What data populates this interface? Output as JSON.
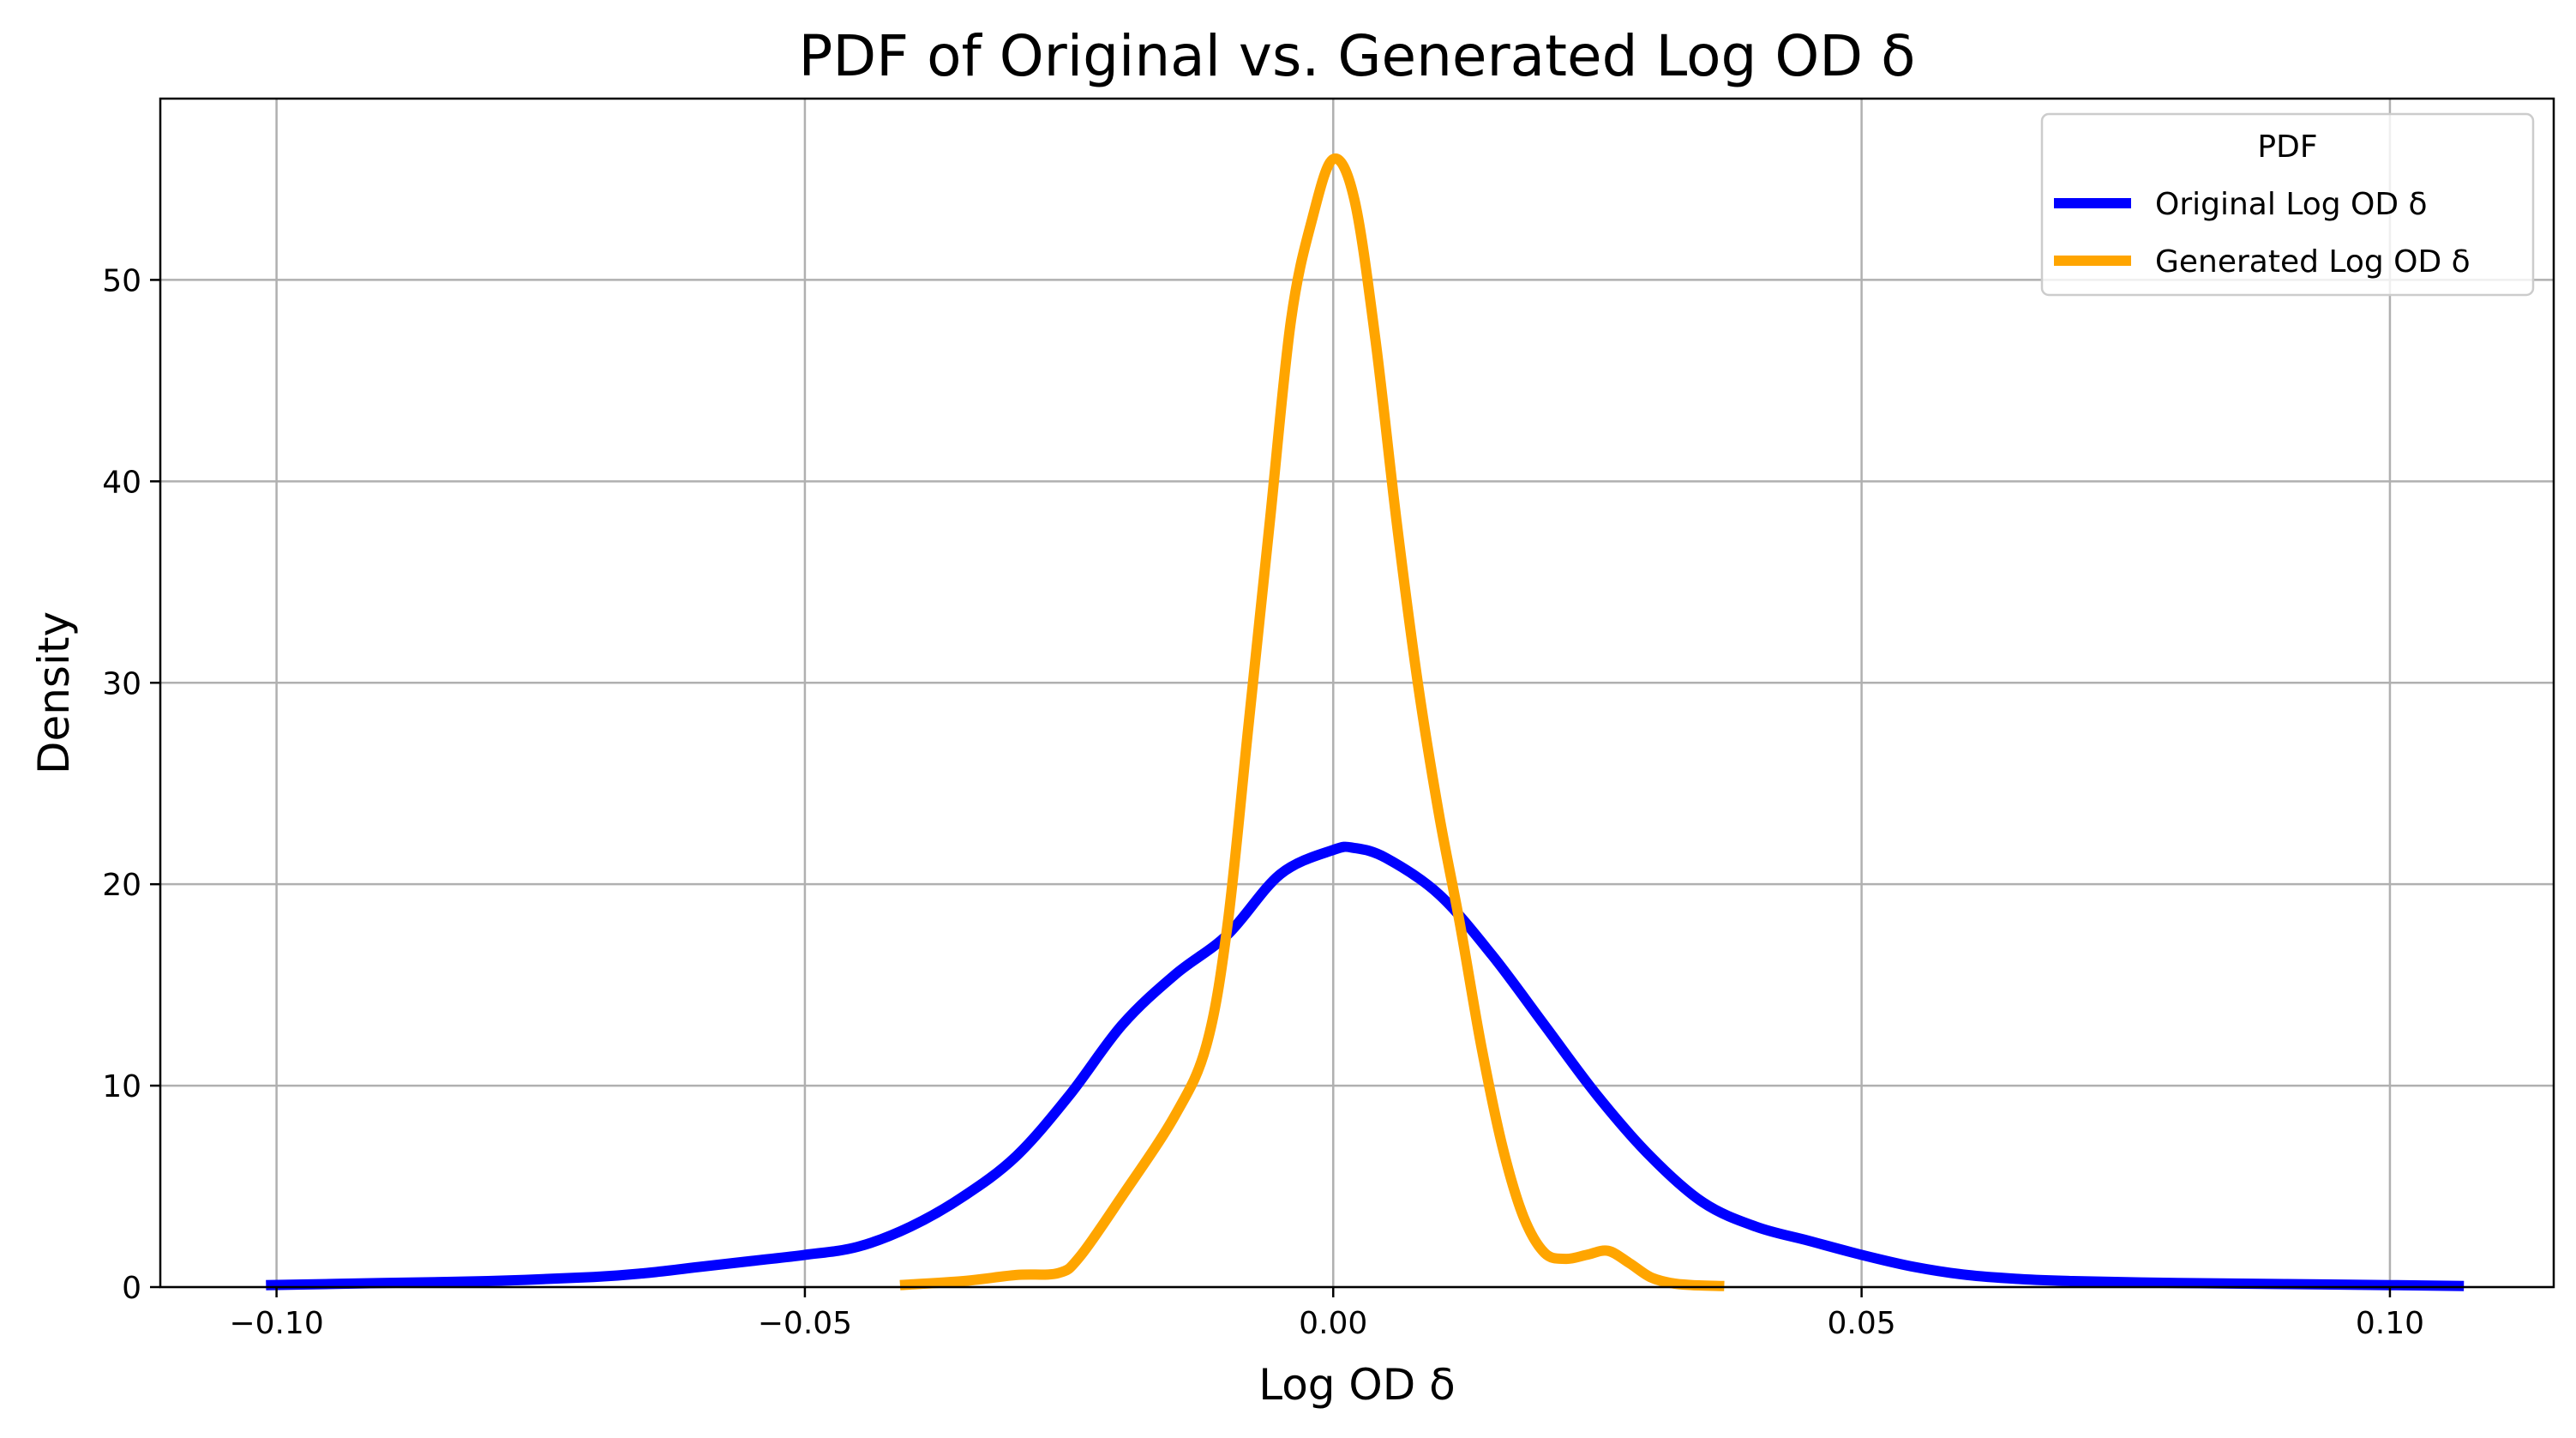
{
  "chart_data": {
    "type": "line",
    "title": "PDF of Original vs. Generated Log OD δ",
    "xlabel": "Log OD δ",
    "ylabel": "Density",
    "xlim": [
      -0.111,
      0.1155
    ],
    "ylim": [
      0,
      59
    ],
    "xticks": [
      -0.1,
      -0.05,
      0.0,
      0.05,
      0.1
    ],
    "xtick_labels": [
      "−0.10",
      "−0.05",
      "0.00",
      "0.05",
      "0.10"
    ],
    "yticks": [
      0,
      10,
      20,
      30,
      40,
      50
    ],
    "ytick_labels": [
      "0",
      "10",
      "20",
      "30",
      "40",
      "50"
    ],
    "grid": true,
    "legend": {
      "title": "PDF",
      "placement": "upper right"
    },
    "series": [
      {
        "name": "Original Log OD δ",
        "color": "#0000ff",
        "x": [
          -0.101,
          -0.09,
          -0.08,
          -0.07,
          -0.065,
          -0.06,
          -0.055,
          -0.05,
          -0.045,
          -0.04,
          -0.035,
          -0.03,
          -0.025,
          -0.02,
          -0.015,
          -0.01,
          -0.005,
          0.0,
          0.002,
          0.005,
          0.01,
          0.015,
          0.02,
          0.025,
          0.03,
          0.035,
          0.04,
          0.045,
          0.05,
          0.055,
          0.06,
          0.065,
          0.07,
          0.08,
          0.09,
          0.1,
          0.107
        ],
        "y": [
          0.1,
          0.2,
          0.3,
          0.5,
          0.7,
          1.0,
          1.3,
          1.6,
          2.0,
          3.0,
          4.5,
          6.5,
          9.5,
          13.0,
          15.5,
          17.5,
          20.5,
          21.7,
          21.8,
          21.3,
          19.5,
          16.5,
          13.0,
          9.5,
          6.5,
          4.2,
          3.0,
          2.3,
          1.6,
          1.0,
          0.6,
          0.4,
          0.3,
          0.2,
          0.15,
          0.1,
          0.05
        ]
      },
      {
        "name": "Generated Log OD δ",
        "color": "#ffa500",
        "x": [
          -0.041,
          -0.035,
          -0.03,
          -0.026,
          -0.024,
          -0.02,
          -0.015,
          -0.012,
          -0.01,
          -0.008,
          -0.006,
          -0.004,
          -0.002,
          0.0,
          0.002,
          0.004,
          0.006,
          0.008,
          0.01,
          0.012,
          0.014,
          0.016,
          0.018,
          0.02,
          0.022,
          0.024,
          0.026,
          0.028,
          0.03,
          0.032,
          0.034,
          0.037
        ],
        "y": [
          0.1,
          0.3,
          0.6,
          0.7,
          1.5,
          4.5,
          8.5,
          12.0,
          18.0,
          28.0,
          38.0,
          48.0,
          53.0,
          56.0,
          54.0,
          47.0,
          38.0,
          30.0,
          23.5,
          18.0,
          12.0,
          7.0,
          3.5,
          1.7,
          1.4,
          1.6,
          1.8,
          1.2,
          0.5,
          0.2,
          0.1,
          0.05
        ]
      }
    ]
  }
}
